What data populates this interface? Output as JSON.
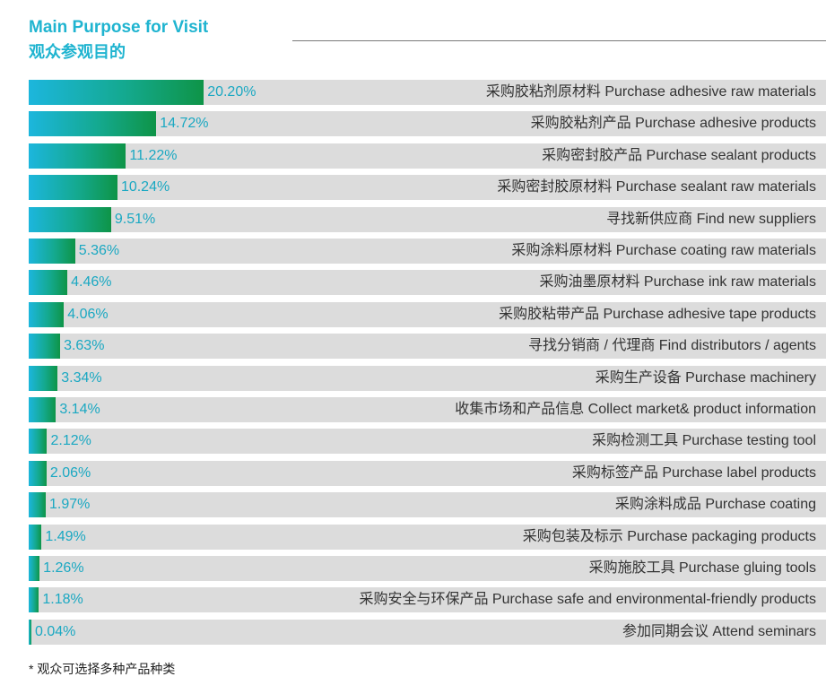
{
  "header": {
    "title_en": "Main Purpose for Visit",
    "title_cn": "观众参观目的"
  },
  "chart_data": {
    "type": "bar",
    "orientation": "horizontal",
    "title": "Main Purpose for Visit 观众参观目的",
    "unit": "%",
    "xlim": [
      0,
      92
    ],
    "categories": [
      "采购胶粘剂原材料 Purchase adhesive raw materials",
      "采购胶粘剂产品 Purchase adhesive products",
      "采购密封胶产品 Purchase sealant products",
      "采购密封胶原材料 Purchase sealant raw materials",
      "寻找新供应商 Find new suppliers",
      "采购涂料原材料 Purchase coating raw materials",
      "采购油墨原材料 Purchase ink raw materials",
      "采购胶粘带产品 Purchase adhesive tape products",
      "寻找分销商 / 代理商 Find distributors / agents",
      "采购生产设备 Purchase machinery",
      "收集市场和产品信息 Collect market& product information",
      "采购检测工具 Purchase testing tool",
      "采购标签产品 Purchase label products",
      "采购涂料成品 Purchase coating",
      "采购包装及标示 Purchase packaging products",
      "采购施胶工具 Purchase gluing tools",
      "采购安全与环保产品 Purchase safe and environmental-friendly products",
      "参加同期会议 Attend seminars"
    ],
    "values": [
      20.2,
      14.72,
      11.22,
      10.24,
      9.51,
      5.36,
      4.46,
      4.06,
      3.63,
      3.34,
      3.14,
      2.12,
      2.06,
      1.97,
      1.49,
      1.26,
      1.18,
      0.04
    ],
    "value_labels": [
      "20.20%",
      "14.72%",
      "11.22%",
      "10.24%",
      "9.51%",
      "5.36%",
      "4.46%",
      "4.06%",
      "3.63%",
      "3.34%",
      "3.14%",
      "2.12%",
      "2.06%",
      "1.97%",
      "1.49%",
      "1.26%",
      "1.18%",
      "0.04%"
    ],
    "colors": {
      "bar_start": "#1cb6dd",
      "bar_end": "#0e9447",
      "track": "#dcdcdc",
      "value_text": "#1aa8c2",
      "title": "#1fb4d0"
    }
  },
  "footnote": "* 观众可选择多种产品种类"
}
